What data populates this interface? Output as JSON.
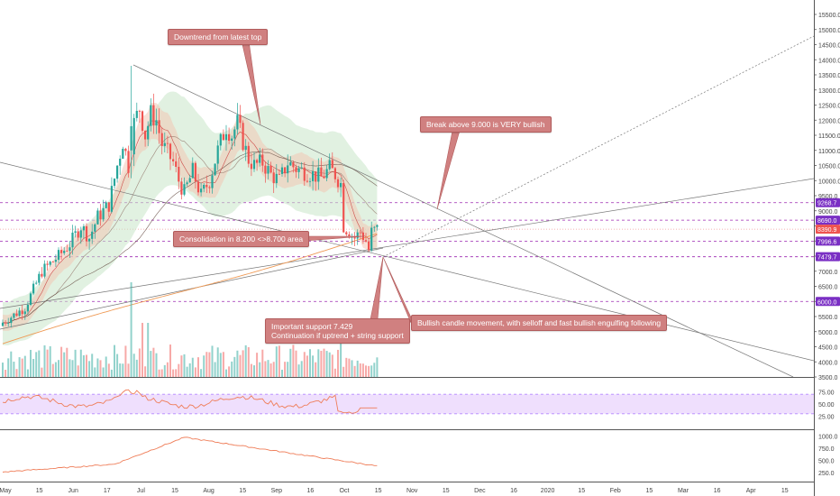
{
  "chart_data": {
    "type": "candlestick",
    "price_axis": {
      "ticks": [
        "15500.0",
        "15000.0",
        "14500.0",
        "14000.0",
        "13500.0",
        "13000.0",
        "12500.0",
        "12000.0",
        "11500.0",
        "11000.0",
        "10500.0",
        "10000.0",
        "9500.0",
        "9000.0",
        "8500.0",
        "8000.0",
        "7500.0",
        "7000.0",
        "6500.0",
        "6000.0",
        "5500.0",
        "5000.0",
        "4500.0",
        "4000.0",
        "3500.0"
      ],
      "range": [
        3500,
        15800
      ]
    },
    "price_labels": [
      {
        "text": "9268.7",
        "value": 9268.7,
        "color": "#7a2fc4"
      },
      {
        "text": "8690.0",
        "value": 8690,
        "color": "#7a2fc4"
      },
      {
        "text": "8390.9",
        "value": 8390.9,
        "color": "#ef5350"
      },
      {
        "text": "7996.6",
        "value": 7996.6,
        "color": "#7a2fc4"
      },
      {
        "text": "7479.7",
        "value": 7479.7,
        "color": "#7a2fc4"
      },
      {
        "text": "6000.0",
        "value": 6000,
        "color": "#7a2fc4"
      }
    ],
    "time_axis": [
      "May",
      "15",
      "Jun",
      "17",
      "Jul",
      "15",
      "Aug",
      "15",
      "Sep",
      "16",
      "Oct",
      "15",
      "Nov",
      "15",
      "Dec",
      "16",
      "2020",
      "15",
      "Feb",
      "15",
      "Mar",
      "16",
      "Apr",
      "15"
    ],
    "rsi": {
      "ticks": [
        "75.00",
        "50.00",
        "25.00"
      ],
      "band": [
        30,
        70
      ],
      "range": [
        0,
        100
      ]
    },
    "lower_indicator": {
      "ticks": [
        "1000.0",
        "750.0",
        "500.0",
        "250.0"
      ],
      "range": [
        100,
        1100
      ]
    },
    "annotations": [
      {
        "lines": [
          "Downtrend from latest top"
        ]
      },
      {
        "lines": [
          "Break above 9.000 is VERY bullish"
        ]
      },
      {
        "lines": [
          "Consolidation in 8.200 <>8.700 area"
        ]
      },
      {
        "lines": [
          "Important support 7.429",
          "Continuation if uptrend + string support"
        ]
      },
      {
        "lines": [
          "Bullish candle movement, with selloff and fast bullish engulfing following"
        ]
      }
    ],
    "colors": {
      "up": "#26a69a",
      "down": "#ef5350",
      "rsi_line": "#ef7d58",
      "rsi_band": "#efdffd",
      "guide": "#9c27b0",
      "trend": "#777777",
      "cloud": "#c8e6c9",
      "callout": "#d08080"
    }
  }
}
